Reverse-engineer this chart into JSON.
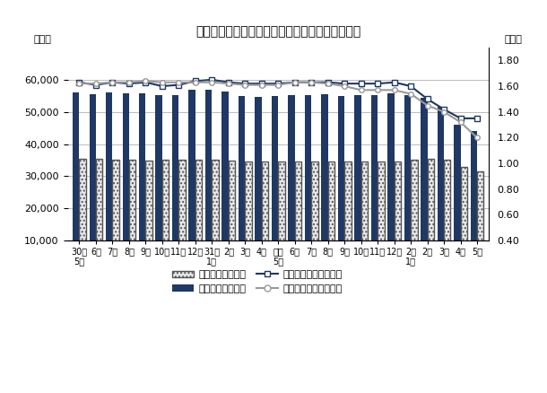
{
  "title": "有効求人倍率、求人・求職の推移（季節調整値）",
  "ylabel_left": "（人）",
  "ylabel_right": "（倍）",
  "xlabels": [
    "30年\n5月",
    "6月",
    "7月",
    "8月",
    "9月",
    "10月",
    "11月",
    "12月",
    "31年\n1月",
    "2月",
    "3月",
    "4月",
    "元年\n5月",
    "6月",
    "7月",
    "8月",
    "9月",
    "10月",
    "11月",
    "12月",
    "2年\n1月",
    "2月",
    "3月",
    "4月",
    "5月"
  ],
  "kyujin": [
    56000,
    55500,
    56000,
    55800,
    55700,
    55200,
    55300,
    56800,
    56800,
    56200,
    55000,
    54700,
    55000,
    55300,
    55300,
    55500,
    55000,
    55200,
    55200,
    55700,
    55200,
    54500,
    51500,
    46000,
    44000
  ],
  "kyushoku": [
    35500,
    35500,
    35000,
    35000,
    34800,
    35000,
    35000,
    35000,
    35000,
    34800,
    34500,
    34500,
    34500,
    34500,
    34500,
    34500,
    34500,
    34500,
    34500,
    34500,
    35000,
    35500,
    35000,
    33000,
    31500
  ],
  "rate_ibaraki": [
    1.63,
    1.61,
    1.63,
    1.62,
    1.63,
    1.6,
    1.61,
    1.64,
    1.65,
    1.63,
    1.62,
    1.62,
    1.62,
    1.63,
    1.63,
    1.63,
    1.62,
    1.62,
    1.62,
    1.63,
    1.6,
    1.5,
    1.42,
    1.35,
    1.35
  ],
  "rate_national": [
    1.62,
    1.62,
    1.63,
    1.63,
    1.64,
    1.63,
    1.63,
    1.63,
    1.63,
    1.62,
    1.61,
    1.61,
    1.61,
    1.63,
    1.63,
    1.62,
    1.6,
    1.57,
    1.57,
    1.57,
    1.54,
    1.45,
    1.4,
    1.32,
    1.2
  ],
  "ylim_left": [
    10000,
    70000
  ],
  "ylim_right": [
    0.4,
    1.9
  ],
  "yticks_left": [
    10000,
    20000,
    30000,
    40000,
    50000,
    60000
  ],
  "yticks_right": [
    0.4,
    0.6,
    0.8,
    1.0,
    1.2,
    1.4,
    1.6,
    1.8
  ],
  "bar_color_kyujin": "#1F3864",
  "bar_color_kyushoku_face": "#E8E8E8",
  "bar_color_kyushoku_edge": "#555555",
  "line_color_ibaraki": "#1F3864",
  "line_color_national": "#999999",
  "background_color": "#FFFFFF",
  "grid_color": "#BBBBBB",
  "legend_labels": [
    "有効求職（茨城）",
    "有効求人（茨城）",
    "有効求人倍率（茨城）",
    "有効求人倍率（全国）"
  ]
}
